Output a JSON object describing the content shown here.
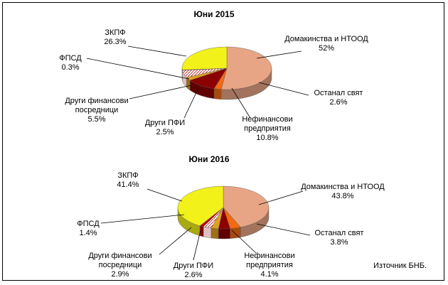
{
  "source_note": "Източник БНБ.",
  "colors": {
    "households": "#E8A585",
    "rest_of_world": "#F26A10",
    "nonfinancial": "#8B0000",
    "other_mfi": "#E0A020",
    "other_fin": "#FFFFFF",
    "fpsd": "#C00000",
    "zkpf": "#F2F21A"
  },
  "chart_data": [
    {
      "type": "pie",
      "title": "Юни 2015",
      "slices": [
        {
          "key": "households",
          "lines": [
            "Домакинства и НТООД"
          ],
          "value": 52,
          "display": "52%"
        },
        {
          "key": "rest_of_world",
          "lines": [
            "Останал свят"
          ],
          "value": 2.6,
          "display": "2.6%"
        },
        {
          "key": "nonfinancial",
          "lines": [
            "Нефинансови",
            "предприятия"
          ],
          "value": 10.8,
          "display": "10.8%"
        },
        {
          "key": "other_mfi",
          "lines": [
            "Други ПФИ"
          ],
          "value": 2.5,
          "display": "2.5%"
        },
        {
          "key": "other_fin",
          "lines": [
            "Други финансови",
            "посредници"
          ],
          "value": 5.5,
          "display": "5.5%"
        },
        {
          "key": "fpsd",
          "lines": [
            "ФПСД"
          ],
          "value": 0.3,
          "display": "0.3%"
        },
        {
          "key": "zkpf",
          "lines": [
            "ЗКПФ"
          ],
          "value": 26.3,
          "display": "26.3%"
        }
      ]
    },
    {
      "type": "pie",
      "title": "Юни 2016",
      "slices": [
        {
          "key": "households",
          "lines": [
            "Домакинства и НТООД"
          ],
          "value": 43.8,
          "display": "43.8%"
        },
        {
          "key": "rest_of_world",
          "lines": [
            "Останал свят"
          ],
          "value": 3.8,
          "display": "3.8%"
        },
        {
          "key": "nonfinancial",
          "lines": [
            "Нефинансови",
            "предприятия"
          ],
          "value": 4.1,
          "display": "4.1%"
        },
        {
          "key": "other_mfi",
          "lines": [
            "Други ПФИ"
          ],
          "value": 2.6,
          "display": "2.6%"
        },
        {
          "key": "other_fin",
          "lines": [
            "Други финансови",
            "посредници"
          ],
          "value": 2.9,
          "display": "2.9%"
        },
        {
          "key": "fpsd",
          "lines": [
            "ФПСД"
          ],
          "value": 1.4,
          "display": "1.4%"
        },
        {
          "key": "zkpf",
          "lines": [
            "ЗКПФ"
          ],
          "value": 41.4,
          "display": "41.4%"
        }
      ]
    }
  ]
}
